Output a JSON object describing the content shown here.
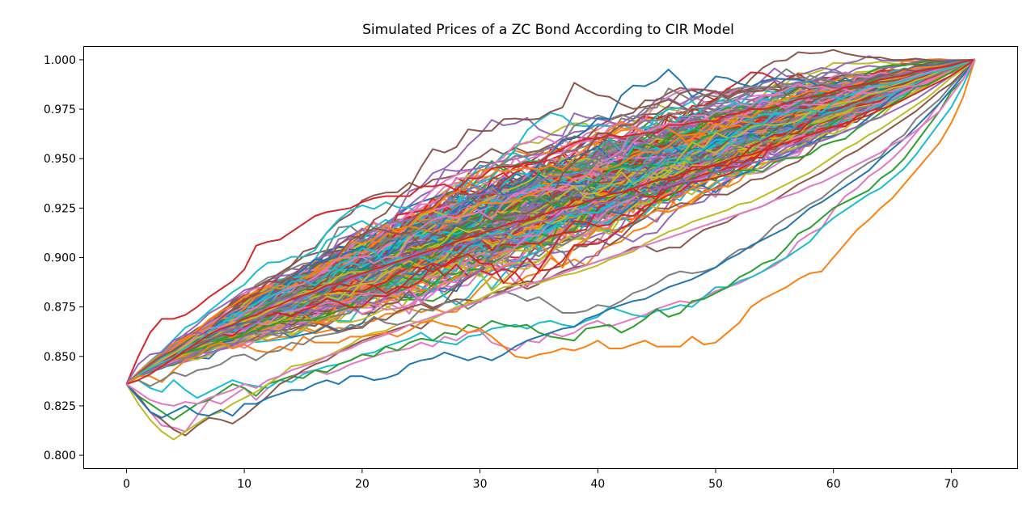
{
  "chart_data": {
    "type": "line",
    "title": "Simulated Prices of a ZC Bond According to CIR Model",
    "xlabel": "",
    "ylabel": "",
    "xlim": [
      -3.6,
      75.6
    ],
    "ylim": [
      0.7935,
      1.0065
    ],
    "xticks": [
      0,
      10,
      20,
      30,
      40,
      50,
      60,
      70
    ],
    "xtick_labels": [
      "0",
      "10",
      "20",
      "30",
      "40",
      "50",
      "60",
      "70"
    ],
    "yticks": [
      0.8,
      0.825,
      0.85,
      0.875,
      0.9,
      0.925,
      0.95,
      0.975,
      1.0
    ],
    "ytick_labels": [
      "0.800",
      "0.825",
      "0.850",
      "0.875",
      "0.900",
      "0.925",
      "0.950",
      "0.975",
      "1.000"
    ],
    "grid": false,
    "legend": "none",
    "colors": [
      "#1f77b4",
      "#ff7f0e",
      "#2ca02c",
      "#d62728",
      "#9467bd",
      "#8c564b",
      "#e377c2",
      "#7f7f7f",
      "#bcbd22",
      "#17becf"
    ],
    "x_start": 0,
    "x_end": 72,
    "start_value": 0.836,
    "end_value": 1.0,
    "series": [
      {
        "values": [
          0.836,
          0.85,
          0.862,
          0.869,
          0.869,
          0.871,
          0.875,
          0.88,
          0.884,
          0.888,
          0.894,
          0.906,
          0.908,
          0.909,
          0.913,
          0.917,
          0.921,
          0.923,
          0.924,
          0.925,
          0.928,
          0.93,
          0.931,
          0.931,
          0.931,
          0.936,
          0.936,
          0.937,
          0.934,
          0.94,
          0.94,
          0.945,
          0.946,
          0.946,
          0.948,
          0.948,
          0.952,
          0.955,
          0.958,
          0.96,
          0.96,
          0.962,
          0.961,
          0.962,
          0.963,
          0.963,
          0.967,
          0.967,
          0.968,
          0.969,
          0.969,
          0.972,
          0.973,
          0.975,
          0.975,
          0.976,
          0.978,
          0.98,
          0.981,
          0.982,
          0.984,
          0.986,
          0.987,
          0.988,
          0.99,
          0.991,
          0.992,
          0.994,
          0.995,
          0.996,
          0.997,
          0.999,
          1.0
        ]
      },
      {
        "values": [
          0.836,
          0.83,
          0.822,
          0.815,
          0.814,
          0.812,
          0.82,
          0.828,
          0.826,
          0.83,
          0.834,
          0.828,
          0.834,
          0.838,
          0.84,
          0.842,
          0.843,
          0.841,
          0.843,
          0.846,
          0.848,
          0.85,
          0.852,
          0.853,
          0.854,
          0.857,
          0.855,
          0.86,
          0.858,
          0.862,
          0.863,
          0.857,
          0.855,
          0.853,
          0.858,
          0.857,
          0.862,
          0.86,
          0.862,
          0.866,
          0.868,
          0.865,
          0.867,
          0.869,
          0.871,
          0.874,
          0.876,
          0.878,
          0.877,
          0.88,
          0.883,
          0.885,
          0.887,
          0.89,
          0.893,
          0.896,
          0.9,
          0.908,
          0.912,
          0.915,
          0.924,
          0.931,
          0.935,
          0.941,
          0.945,
          0.95,
          0.956,
          0.963,
          0.97,
          0.978,
          0.985,
          0.992,
          1.0
        ]
      },
      {
        "values": [
          0.836,
          0.838,
          0.834,
          0.832,
          0.838,
          0.833,
          0.829,
          0.832,
          0.835,
          0.838,
          0.836,
          0.835,
          0.834,
          0.838,
          0.837,
          0.841,
          0.843,
          0.845,
          0.846,
          0.848,
          0.851,
          0.852,
          0.855,
          0.857,
          0.859,
          0.862,
          0.858,
          0.857,
          0.856,
          0.86,
          0.861,
          0.864,
          0.865,
          0.866,
          0.864,
          0.867,
          0.868,
          0.866,
          0.865,
          0.868,
          0.87,
          0.875,
          0.873,
          0.871,
          0.87,
          0.873,
          0.874,
          0.876,
          0.875,
          0.88,
          0.885,
          0.885,
          0.888,
          0.89,
          0.893,
          0.897,
          0.9,
          0.904,
          0.908,
          0.915,
          0.92,
          0.924,
          0.928,
          0.932,
          0.935,
          0.94,
          0.945,
          0.952,
          0.96,
          0.968,
          0.976,
          0.987,
          1.0
        ]
      },
      {
        "values": [
          0.836,
          0.83,
          0.826,
          0.822,
          0.818,
          0.822,
          0.826,
          0.828,
          0.832,
          0.836,
          0.834,
          0.83,
          0.836,
          0.838,
          0.84,
          0.839,
          0.843,
          0.842,
          0.846,
          0.848,
          0.851,
          0.85,
          0.855,
          0.853,
          0.857,
          0.859,
          0.858,
          0.862,
          0.861,
          0.866,
          0.864,
          0.868,
          0.866,
          0.865,
          0.866,
          0.862,
          0.86,
          0.859,
          0.858,
          0.864,
          0.865,
          0.866,
          0.862,
          0.865,
          0.869,
          0.874,
          0.87,
          0.872,
          0.878,
          0.879,
          0.882,
          0.885,
          0.89,
          0.893,
          0.897,
          0.899,
          0.905,
          0.912,
          0.915,
          0.92,
          0.925,
          0.928,
          0.931,
          0.934,
          0.94,
          0.944,
          0.95,
          0.958,
          0.966,
          0.974,
          0.984,
          0.99,
          1.0
        ]
      },
      {
        "values": [
          0.836,
          0.83,
          0.822,
          0.818,
          0.813,
          0.81,
          0.815,
          0.819,
          0.818,
          0.816,
          0.82,
          0.825,
          0.83,
          0.836,
          0.839,
          0.843,
          0.846,
          0.848,
          0.852,
          0.855,
          0.858,
          0.86,
          0.862,
          0.864,
          0.866,
          0.864,
          0.869,
          0.872,
          0.874,
          0.876,
          0.879,
          0.882,
          0.883,
          0.886,
          0.888,
          0.887,
          0.89,
          0.893,
          0.895,
          0.896,
          0.898,
          0.9,
          0.902,
          0.905,
          0.906,
          0.903,
          0.905,
          0.905,
          0.91,
          0.914,
          0.916,
          0.918,
          0.922,
          0.924,
          0.926,
          0.929,
          0.933,
          0.937,
          0.94,
          0.943,
          0.947,
          0.951,
          0.954,
          0.958,
          0.962,
          0.966,
          0.97,
          0.974,
          0.979,
          0.984,
          0.988,
          0.994,
          1.0
        ]
      },
      {
        "values": [
          0.836,
          0.826,
          0.818,
          0.812,
          0.808,
          0.812,
          0.816,
          0.82,
          0.822,
          0.826,
          0.829,
          0.832,
          0.836,
          0.84,
          0.845,
          0.846,
          0.848,
          0.85,
          0.853,
          0.856,
          0.86,
          0.862,
          0.863,
          0.866,
          0.868,
          0.867,
          0.869,
          0.872,
          0.875,
          0.877,
          0.879,
          0.882,
          0.885,
          0.886,
          0.887,
          0.887,
          0.889,
          0.891,
          0.892,
          0.894,
          0.896,
          0.899,
          0.901,
          0.903,
          0.907,
          0.91,
          0.913,
          0.915,
          0.918,
          0.92,
          0.922,
          0.924,
          0.927,
          0.928,
          0.931,
          0.934,
          0.937,
          0.94,
          0.943,
          0.947,
          0.951,
          0.955,
          0.958,
          0.962,
          0.965,
          0.969,
          0.973,
          0.977,
          0.981,
          0.986,
          0.991,
          0.995,
          1.0
        ]
      },
      {
        "values": [
          0.836,
          0.84,
          0.84,
          0.837,
          0.843,
          0.848,
          0.85,
          0.855,
          0.857,
          0.854,
          0.856,
          0.853,
          0.852,
          0.855,
          0.853,
          0.86,
          0.857,
          0.857,
          0.857,
          0.86,
          0.86,
          0.861,
          0.862,
          0.86,
          0.863,
          0.867,
          0.868,
          0.866,
          0.865,
          0.862,
          0.864,
          0.86,
          0.855,
          0.85,
          0.849,
          0.851,
          0.852,
          0.854,
          0.853,
          0.855,
          0.858,
          0.854,
          0.854,
          0.856,
          0.858,
          0.855,
          0.855,
          0.855,
          0.86,
          0.856,
          0.857,
          0.862,
          0.867,
          0.875,
          0.879,
          0.882,
          0.885,
          0.889,
          0.892,
          0.893,
          0.9,
          0.907,
          0.914,
          0.919,
          0.925,
          0.93,
          0.937,
          0.944,
          0.951,
          0.958,
          0.968,
          0.981,
          1.0
        ]
      },
      {
        "values": [
          0.836,
          0.846,
          0.851,
          0.852,
          0.858,
          0.861,
          0.862,
          0.861,
          0.863,
          0.864,
          0.864,
          0.867,
          0.872,
          0.875,
          0.877,
          0.88,
          0.882,
          0.885,
          0.887,
          0.889,
          0.891,
          0.893,
          0.895,
          0.898,
          0.899,
          0.901,
          0.903,
          0.904,
          0.906,
          0.907,
          0.909,
          0.911,
          0.912,
          0.915,
          0.916,
          0.918,
          0.919,
          0.922,
          0.923,
          0.925,
          0.927,
          0.928,
          0.93,
          0.931,
          0.933,
          0.935,
          0.936,
          0.938,
          0.939,
          0.941,
          0.943,
          0.944,
          0.946,
          0.948,
          0.949,
          0.951,
          0.953,
          0.955,
          0.957,
          0.959,
          0.961,
          0.964,
          0.966,
          0.969,
          0.971,
          0.974,
          0.977,
          0.98,
          0.984,
          0.988,
          0.992,
          0.996,
          1.0
        ]
      },
      {
        "values": [
          0.836,
          0.838,
          0.835,
          0.838,
          0.842,
          0.84,
          0.843,
          0.844,
          0.846,
          0.85,
          0.851,
          0.848,
          0.852,
          0.853,
          0.857,
          0.856,
          0.86,
          0.861,
          0.862,
          0.866,
          0.865,
          0.87,
          0.867,
          0.866,
          0.868,
          0.874,
          0.873,
          0.877,
          0.878,
          0.874,
          0.878,
          0.88,
          0.883,
          0.881,
          0.878,
          0.88,
          0.876,
          0.872,
          0.872,
          0.873,
          0.876,
          0.875,
          0.878,
          0.882,
          0.884,
          0.887,
          0.891,
          0.893,
          0.892,
          0.893,
          0.895,
          0.9,
          0.904,
          0.905,
          0.91,
          0.916,
          0.92,
          0.923,
          0.927,
          0.93,
          0.935,
          0.94,
          0.944,
          0.948,
          0.951,
          0.958,
          0.962,
          0.97,
          0.975,
          0.98,
          0.987,
          0.993,
          1.0
        ]
      },
      {
        "values": [
          0.836,
          0.829,
          0.822,
          0.819,
          0.822,
          0.825,
          0.821,
          0.82,
          0.823,
          0.82,
          0.826,
          0.826,
          0.829,
          0.831,
          0.833,
          0.833,
          0.836,
          0.838,
          0.836,
          0.84,
          0.84,
          0.838,
          0.839,
          0.841,
          0.846,
          0.848,
          0.849,
          0.852,
          0.85,
          0.848,
          0.85,
          0.848,
          0.851,
          0.855,
          0.858,
          0.86,
          0.862,
          0.864,
          0.865,
          0.869,
          0.871,
          0.874,
          0.876,
          0.878,
          0.879,
          0.882,
          0.885,
          0.887,
          0.889,
          0.892,
          0.895,
          0.899,
          0.902,
          0.906,
          0.909,
          0.912,
          0.915,
          0.92,
          0.925,
          0.928,
          0.932,
          0.936,
          0.94,
          0.944,
          0.95,
          0.955,
          0.96,
          0.966,
          0.972,
          0.978,
          0.985,
          0.992,
          1.0
        ]
      },
      {
        "values": [
          0.836,
          0.838,
          0.841,
          0.845,
          0.849,
          0.853,
          0.857,
          0.861,
          0.864,
          0.866,
          0.869,
          0.871,
          0.874,
          0.876,
          0.879,
          0.881,
          0.883,
          0.886,
          0.887,
          0.89,
          0.892,
          0.894,
          0.896,
          0.898,
          0.9,
          0.902,
          0.904,
          0.906,
          0.908,
          0.91,
          0.912,
          0.914,
          0.916,
          0.918,
          0.919,
          0.921,
          0.923,
          0.925,
          0.926,
          0.928,
          0.93,
          0.932,
          0.933,
          0.935,
          0.937,
          0.939,
          0.94,
          0.942,
          0.944,
          0.945,
          0.947,
          0.949,
          0.951,
          0.952,
          0.954,
          0.956,
          0.958,
          0.96,
          0.962,
          0.964,
          0.966,
          0.968,
          0.97,
          0.972,
          0.975,
          0.977,
          0.98,
          0.983,
          0.986,
          0.989,
          0.992,
          0.996,
          1.0
        ]
      },
      {
        "values": [
          0.836,
          0.832,
          0.828,
          0.826,
          0.825,
          0.827,
          0.826,
          0.829,
          0.831,
          0.833,
          0.836,
          0.834,
          0.838,
          0.84,
          0.843,
          0.845,
          0.847,
          0.85,
          0.852,
          0.854,
          0.857,
          0.859,
          0.861,
          0.863,
          0.866,
          0.868,
          0.87,
          0.872,
          0.874,
          0.876,
          0.878,
          0.88,
          0.882,
          0.884,
          0.886,
          0.888,
          0.89,
          0.892,
          0.894,
          0.896,
          0.898,
          0.9,
          0.902,
          0.904,
          0.906,
          0.908,
          0.91,
          0.912,
          0.914,
          0.916,
          0.918,
          0.92,
          0.922,
          0.924,
          0.926,
          0.929,
          0.931,
          0.933,
          0.936,
          0.938,
          0.941,
          0.944,
          0.947,
          0.95,
          0.953,
          0.957,
          0.96,
          0.964,
          0.969,
          0.974,
          0.982,
          0.99,
          1.0
        ]
      }
    ],
    "ensemble_paths": 240
  }
}
